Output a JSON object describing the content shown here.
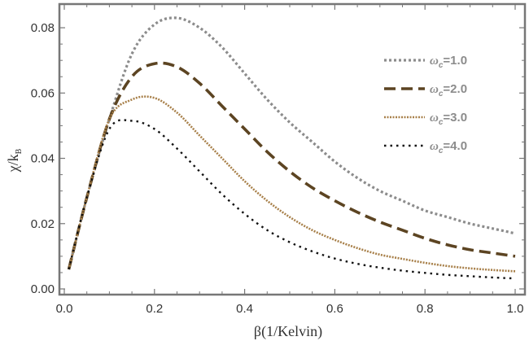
{
  "chart_data": {
    "type": "line",
    "xlabel": "β(1/Kelvin)",
    "ylabel": "χ/k_B",
    "ylabel_parts": {
      "main": "χ/k",
      "sub": "B"
    },
    "xlim": [
      0.0,
      1.0
    ],
    "ylim": [
      0.0,
      0.087
    ],
    "xticks": [
      0.0,
      0.2,
      0.4,
      0.6,
      0.8,
      1.0
    ],
    "xtick_labels": [
      "0.0",
      "0.2",
      "0.4",
      "0.6",
      "0.8",
      "1.0"
    ],
    "yticks": [
      0.0,
      0.02,
      0.04,
      0.06,
      0.08
    ],
    "ytick_labels": [
      "0.00",
      "0.02",
      "0.04",
      "0.06",
      "0.08"
    ],
    "legend_position": "top-right",
    "x": [
      0.01,
      0.05,
      0.1,
      0.15,
      0.2,
      0.25,
      0.3,
      0.35,
      0.4,
      0.45,
      0.5,
      0.55,
      0.6,
      0.65,
      0.7,
      0.75,
      0.8,
      0.85,
      0.9,
      0.95,
      1.0
    ],
    "series": [
      {
        "name": "ωc=1.0",
        "label_parts": {
          "symbol": "ω",
          "sub": "c",
          "value": "=1.0"
        },
        "color": "#8c8c8c",
        "dash": "dotted",
        "values": [
          0.006,
          0.028,
          0.052,
          0.072,
          0.081,
          0.083,
          0.08,
          0.074,
          0.066,
          0.058,
          0.051,
          0.045,
          0.039,
          0.034,
          0.03,
          0.027,
          0.024,
          0.022,
          0.02,
          0.0185,
          0.017
        ]
      },
      {
        "name": "ωc=2.0",
        "label_parts": {
          "symbol": "ω",
          "sub": "c",
          "value": "=2.0"
        },
        "color": "#5c4422",
        "dash": "long-dash",
        "values": [
          0.006,
          0.028,
          0.052,
          0.065,
          0.069,
          0.068,
          0.063,
          0.056,
          0.049,
          0.042,
          0.036,
          0.031,
          0.027,
          0.0235,
          0.0205,
          0.018,
          0.0155,
          0.0135,
          0.012,
          0.011,
          0.01
        ]
      },
      {
        "name": "ωc=3.0",
        "label_parts": {
          "symbol": "ω",
          "sub": "c",
          "value": "=3.0"
        },
        "color": "#a8804a",
        "dash": "dense-dotted",
        "values": [
          0.006,
          0.028,
          0.052,
          0.058,
          0.0585,
          0.054,
          0.047,
          0.04,
          0.033,
          0.027,
          0.022,
          0.018,
          0.015,
          0.0125,
          0.0105,
          0.0092,
          0.008,
          0.007,
          0.0063,
          0.0058,
          0.0054
        ]
      },
      {
        "name": "ωc=4.0",
        "label_parts": {
          "symbol": "ω",
          "sub": "c",
          "value": "=4.0"
        },
        "color": "#111111",
        "dash": "sparse-dotted",
        "values": [
          0.006,
          0.028,
          0.049,
          0.0515,
          0.049,
          0.043,
          0.036,
          0.029,
          0.023,
          0.018,
          0.0143,
          0.0115,
          0.0093,
          0.0077,
          0.0065,
          0.0056,
          0.0049,
          0.0043,
          0.0039,
          0.0035,
          0.0032
        ]
      }
    ]
  }
}
